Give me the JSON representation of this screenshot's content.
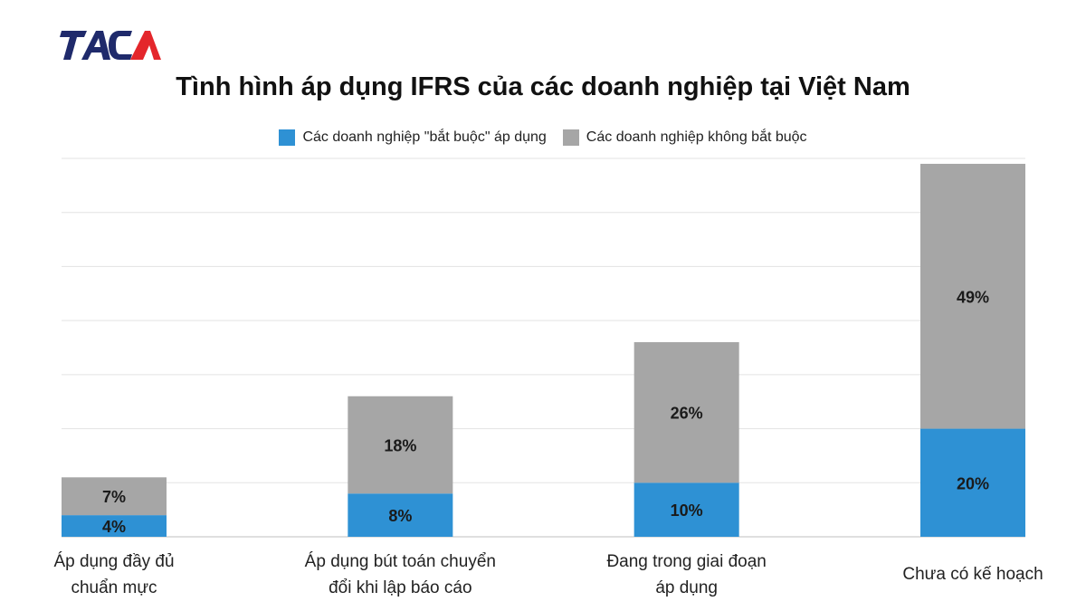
{
  "chart_data": {
    "type": "bar",
    "stacked": true,
    "title": "Tình hình áp dụng IFRS của các doanh nghiệp tại Việt Nam",
    "categories": [
      [
        "Áp dụng đầy đủ",
        "chuẩn mực"
      ],
      [
        "Áp dụng bút toán chuyển",
        "đổi khi lập báo cáo"
      ],
      [
        "Đang trong giai đoạn",
        "áp dụng"
      ],
      [
        "Chưa có kế hoạch"
      ]
    ],
    "series": [
      {
        "name": "Các doanh nghiệp \"bắt buộc\" áp dụng",
        "color": "#2E91D4",
        "values": [
          4,
          8,
          10,
          20
        ],
        "labels": [
          "4%",
          "8%",
          "10%",
          "20%"
        ]
      },
      {
        "name": "Các doanh nghiệp không bắt buộc",
        "color": "#A6A6A6",
        "values": [
          7,
          18,
          26,
          49
        ],
        "labels": [
          "7%",
          "18%",
          "26%",
          "49%"
        ]
      }
    ],
    "ylim": [
      0,
      70
    ],
    "grid": true,
    "legend_position": "top-center"
  },
  "logo": {
    "text": "TACA",
    "colors": [
      "#1F2A6B",
      "#E4262B"
    ]
  }
}
